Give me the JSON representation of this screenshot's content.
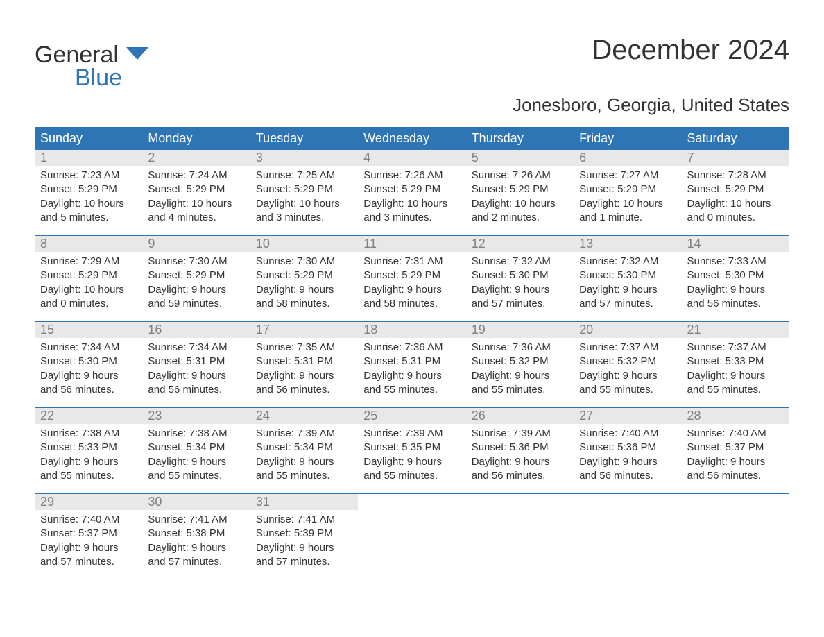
{
  "brand": {
    "general": "General",
    "blue": "Blue"
  },
  "title": "December 2024",
  "subtitle": "Jonesboro, Georgia, United States",
  "colors": {
    "header_bg": "#2e75b6",
    "header_text": "#ffffff",
    "daynum_bg": "#e8e8e8",
    "daynum_text": "#808080",
    "body_text": "#333333",
    "week_border": "#2e75b6",
    "brand_blue": "#2e75b6",
    "page_bg": "#ffffff"
  },
  "typography": {
    "title_fontsize": 40,
    "subtitle_fontsize": 26,
    "dayhead_fontsize": 18,
    "daynum_fontsize": 18,
    "body_fontsize": 15,
    "logo_fontsize": 34
  },
  "layout": {
    "columns": 7,
    "rows": 5,
    "cell_min_height": 122
  },
  "day_headers": [
    "Sunday",
    "Monday",
    "Tuesday",
    "Wednesday",
    "Thursday",
    "Friday",
    "Saturday"
  ],
  "labels": {
    "sunrise": "Sunrise:",
    "sunset": "Sunset:",
    "daylight": "Daylight:"
  },
  "weeks": [
    [
      {
        "day": "1",
        "sunrise": "7:23 AM",
        "sunset": "5:29 PM",
        "daylight1": "10 hours",
        "daylight2": "and 5 minutes."
      },
      {
        "day": "2",
        "sunrise": "7:24 AM",
        "sunset": "5:29 PM",
        "daylight1": "10 hours",
        "daylight2": "and 4 minutes."
      },
      {
        "day": "3",
        "sunrise": "7:25 AM",
        "sunset": "5:29 PM",
        "daylight1": "10 hours",
        "daylight2": "and 3 minutes."
      },
      {
        "day": "4",
        "sunrise": "7:26 AM",
        "sunset": "5:29 PM",
        "daylight1": "10 hours",
        "daylight2": "and 3 minutes."
      },
      {
        "day": "5",
        "sunrise": "7:26 AM",
        "sunset": "5:29 PM",
        "daylight1": "10 hours",
        "daylight2": "and 2 minutes."
      },
      {
        "day": "6",
        "sunrise": "7:27 AM",
        "sunset": "5:29 PM",
        "daylight1": "10 hours",
        "daylight2": "and 1 minute."
      },
      {
        "day": "7",
        "sunrise": "7:28 AM",
        "sunset": "5:29 PM",
        "daylight1": "10 hours",
        "daylight2": "and 0 minutes."
      }
    ],
    [
      {
        "day": "8",
        "sunrise": "7:29 AM",
        "sunset": "5:29 PM",
        "daylight1": "10 hours",
        "daylight2": "and 0 minutes."
      },
      {
        "day": "9",
        "sunrise": "7:30 AM",
        "sunset": "5:29 PM",
        "daylight1": "9 hours",
        "daylight2": "and 59 minutes."
      },
      {
        "day": "10",
        "sunrise": "7:30 AM",
        "sunset": "5:29 PM",
        "daylight1": "9 hours",
        "daylight2": "and 58 minutes."
      },
      {
        "day": "11",
        "sunrise": "7:31 AM",
        "sunset": "5:29 PM",
        "daylight1": "9 hours",
        "daylight2": "and 58 minutes."
      },
      {
        "day": "12",
        "sunrise": "7:32 AM",
        "sunset": "5:30 PM",
        "daylight1": "9 hours",
        "daylight2": "and 57 minutes."
      },
      {
        "day": "13",
        "sunrise": "7:32 AM",
        "sunset": "5:30 PM",
        "daylight1": "9 hours",
        "daylight2": "and 57 minutes."
      },
      {
        "day": "14",
        "sunrise": "7:33 AM",
        "sunset": "5:30 PM",
        "daylight1": "9 hours",
        "daylight2": "and 56 minutes."
      }
    ],
    [
      {
        "day": "15",
        "sunrise": "7:34 AM",
        "sunset": "5:30 PM",
        "daylight1": "9 hours",
        "daylight2": "and 56 minutes."
      },
      {
        "day": "16",
        "sunrise": "7:34 AM",
        "sunset": "5:31 PM",
        "daylight1": "9 hours",
        "daylight2": "and 56 minutes."
      },
      {
        "day": "17",
        "sunrise": "7:35 AM",
        "sunset": "5:31 PM",
        "daylight1": "9 hours",
        "daylight2": "and 56 minutes."
      },
      {
        "day": "18",
        "sunrise": "7:36 AM",
        "sunset": "5:31 PM",
        "daylight1": "9 hours",
        "daylight2": "and 55 minutes."
      },
      {
        "day": "19",
        "sunrise": "7:36 AM",
        "sunset": "5:32 PM",
        "daylight1": "9 hours",
        "daylight2": "and 55 minutes."
      },
      {
        "day": "20",
        "sunrise": "7:37 AM",
        "sunset": "5:32 PM",
        "daylight1": "9 hours",
        "daylight2": "and 55 minutes."
      },
      {
        "day": "21",
        "sunrise": "7:37 AM",
        "sunset": "5:33 PM",
        "daylight1": "9 hours",
        "daylight2": "and 55 minutes."
      }
    ],
    [
      {
        "day": "22",
        "sunrise": "7:38 AM",
        "sunset": "5:33 PM",
        "daylight1": "9 hours",
        "daylight2": "and 55 minutes."
      },
      {
        "day": "23",
        "sunrise": "7:38 AM",
        "sunset": "5:34 PM",
        "daylight1": "9 hours",
        "daylight2": "and 55 minutes."
      },
      {
        "day": "24",
        "sunrise": "7:39 AM",
        "sunset": "5:34 PM",
        "daylight1": "9 hours",
        "daylight2": "and 55 minutes."
      },
      {
        "day": "25",
        "sunrise": "7:39 AM",
        "sunset": "5:35 PM",
        "daylight1": "9 hours",
        "daylight2": "and 55 minutes."
      },
      {
        "day": "26",
        "sunrise": "7:39 AM",
        "sunset": "5:36 PM",
        "daylight1": "9 hours",
        "daylight2": "and 56 minutes."
      },
      {
        "day": "27",
        "sunrise": "7:40 AM",
        "sunset": "5:36 PM",
        "daylight1": "9 hours",
        "daylight2": "and 56 minutes."
      },
      {
        "day": "28",
        "sunrise": "7:40 AM",
        "sunset": "5:37 PM",
        "daylight1": "9 hours",
        "daylight2": "and 56 minutes."
      }
    ],
    [
      {
        "day": "29",
        "sunrise": "7:40 AM",
        "sunset": "5:37 PM",
        "daylight1": "9 hours",
        "daylight2": "and 57 minutes."
      },
      {
        "day": "30",
        "sunrise": "7:41 AM",
        "sunset": "5:38 PM",
        "daylight1": "9 hours",
        "daylight2": "and 57 minutes."
      },
      {
        "day": "31",
        "sunrise": "7:41 AM",
        "sunset": "5:39 PM",
        "daylight1": "9 hours",
        "daylight2": "and 57 minutes."
      },
      null,
      null,
      null,
      null
    ]
  ]
}
